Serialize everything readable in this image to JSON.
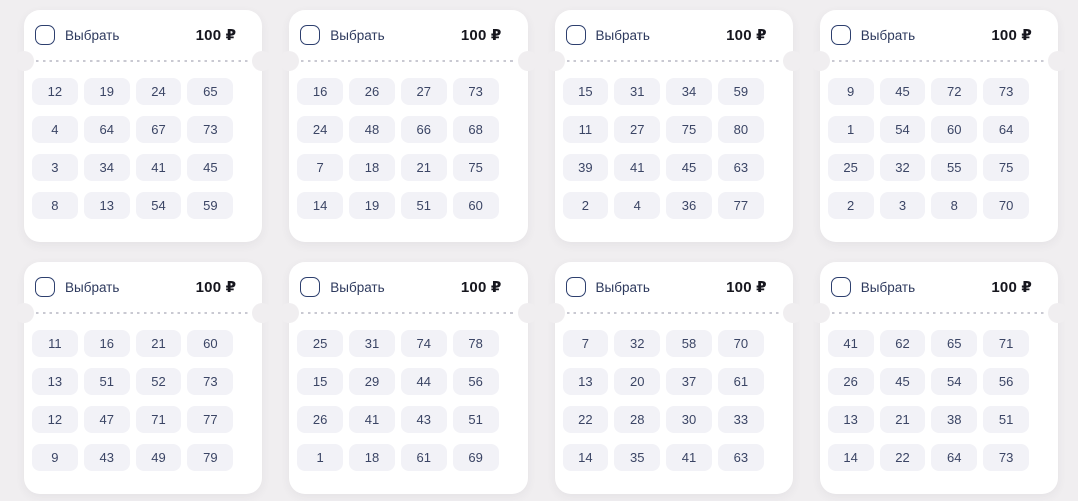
{
  "ticket_card": {
    "select_label": "Выбрать",
    "price": "100 ₽"
  },
  "colors": {
    "page-bg": "#f0eef0",
    "card-bg": "#ffffff",
    "navy": "#2d3f6e",
    "navy-text": "#2e3a5e",
    "price-color": "#16161e",
    "dash": "#c9c9d2",
    "cell-bg": "#f2f2f7",
    "cell-text": "#3b4565"
  },
  "tickets": [
    {
      "numbers": [
        [
          12,
          19,
          24,
          65
        ],
        [
          4,
          64,
          67,
          73
        ],
        [
          3,
          34,
          41,
          45
        ],
        [
          8,
          13,
          54,
          59
        ]
      ]
    },
    {
      "numbers": [
        [
          16,
          26,
          27,
          73
        ],
        [
          24,
          48,
          66,
          68
        ],
        [
          7,
          18,
          21,
          75
        ],
        [
          14,
          19,
          51,
          60
        ]
      ]
    },
    {
      "numbers": [
        [
          15,
          31,
          34,
          59
        ],
        [
          11,
          27,
          75,
          80
        ],
        [
          39,
          41,
          45,
          63
        ],
        [
          2,
          4,
          36,
          77
        ]
      ]
    },
    {
      "numbers": [
        [
          9,
          45,
          72,
          73
        ],
        [
          1,
          54,
          60,
          64
        ],
        [
          25,
          32,
          55,
          75
        ],
        [
          2,
          3,
          8,
          70
        ]
      ]
    },
    {
      "numbers": [
        [
          11,
          16,
          21,
          60
        ],
        [
          13,
          51,
          52,
          73
        ],
        [
          12,
          47,
          71,
          77
        ],
        [
          9,
          43,
          49,
          79
        ]
      ]
    },
    {
      "numbers": [
        [
          25,
          31,
          74,
          78
        ],
        [
          15,
          29,
          44,
          56
        ],
        [
          26,
          41,
          43,
          51
        ],
        [
          1,
          18,
          61,
          69
        ]
      ]
    },
    {
      "numbers": [
        [
          7,
          32,
          58,
          70
        ],
        [
          13,
          20,
          37,
          61
        ],
        [
          22,
          28,
          30,
          33
        ],
        [
          14,
          35,
          41,
          63
        ]
      ]
    },
    {
      "numbers": [
        [
          41,
          62,
          65,
          71
        ],
        [
          26,
          45,
          54,
          56
        ],
        [
          13,
          21,
          38,
          51
        ],
        [
          14,
          22,
          64,
          73
        ]
      ]
    }
  ]
}
